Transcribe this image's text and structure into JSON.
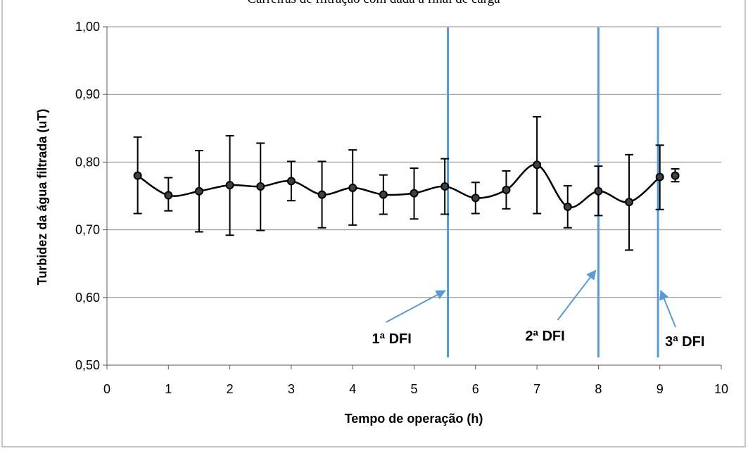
{
  "chart_data": {
    "type": "line",
    "title": "Carreiras de filtração com dada a final de carga",
    "xlabel": "Tempo de operação (h)",
    "ylabel": "Turbidez da água filtrada (uT)",
    "xlim": [
      0,
      10
    ],
    "ylim": [
      0.5,
      1.0
    ],
    "x_ticks": [
      "0",
      "1",
      "2",
      "3",
      "4",
      "5",
      "6",
      "7",
      "8",
      "9",
      "10"
    ],
    "y_ticks": [
      "0,50",
      "0,60",
      "0,70",
      "0,80",
      "0,90",
      "1,00"
    ],
    "grid": "horizontal",
    "smooth": true,
    "series": [
      {
        "x": [
          0.5,
          1.0,
          1.5,
          2.0,
          2.5,
          3.0,
          3.5,
          4.0,
          4.5,
          5.0,
          5.5,
          6.0,
          6.5,
          7.0,
          7.5,
          8.0,
          8.5,
          9.0,
          9.25
        ],
        "y": [
          0.78,
          0.751,
          0.757,
          0.766,
          0.764,
          0.772,
          0.752,
          0.762,
          0.752,
          0.754,
          0.764,
          0.747,
          0.759,
          0.796,
          0.734,
          0.757,
          0.741,
          0.778,
          0.78
        ],
        "error_low": [
          0.724,
          0.728,
          0.697,
          0.692,
          0.699,
          0.743,
          0.703,
          0.707,
          0.723,
          0.716,
          0.723,
          0.724,
          0.731,
          0.724,
          0.703,
          0.721,
          0.67,
          0.73,
          0.771
        ],
        "error_high": [
          0.837,
          0.777,
          0.817,
          0.839,
          0.828,
          0.801,
          0.801,
          0.818,
          0.781,
          0.791,
          0.805,
          0.77,
          0.787,
          0.867,
          0.765,
          0.794,
          0.811,
          0.825,
          0.79
        ],
        "color": "#000000"
      }
    ],
    "annotations": [
      {
        "label": "1ª DFI",
        "x": 5.55,
        "arrow_to_y": 0.61,
        "color": "#5b9bd5"
      },
      {
        "label": "2ª DFI",
        "x": 8.0,
        "arrow_to_y": 0.64,
        "color": "#5b9bd5"
      },
      {
        "label": "3ª DFI",
        "x": 8.97,
        "arrow_to_y": 0.61,
        "color": "#5b9bd5"
      }
    ],
    "colors": {
      "line": "#000000",
      "marker_fill": "#404040",
      "dfi_line": "#5b9bd5",
      "grid": "#888888"
    }
  }
}
